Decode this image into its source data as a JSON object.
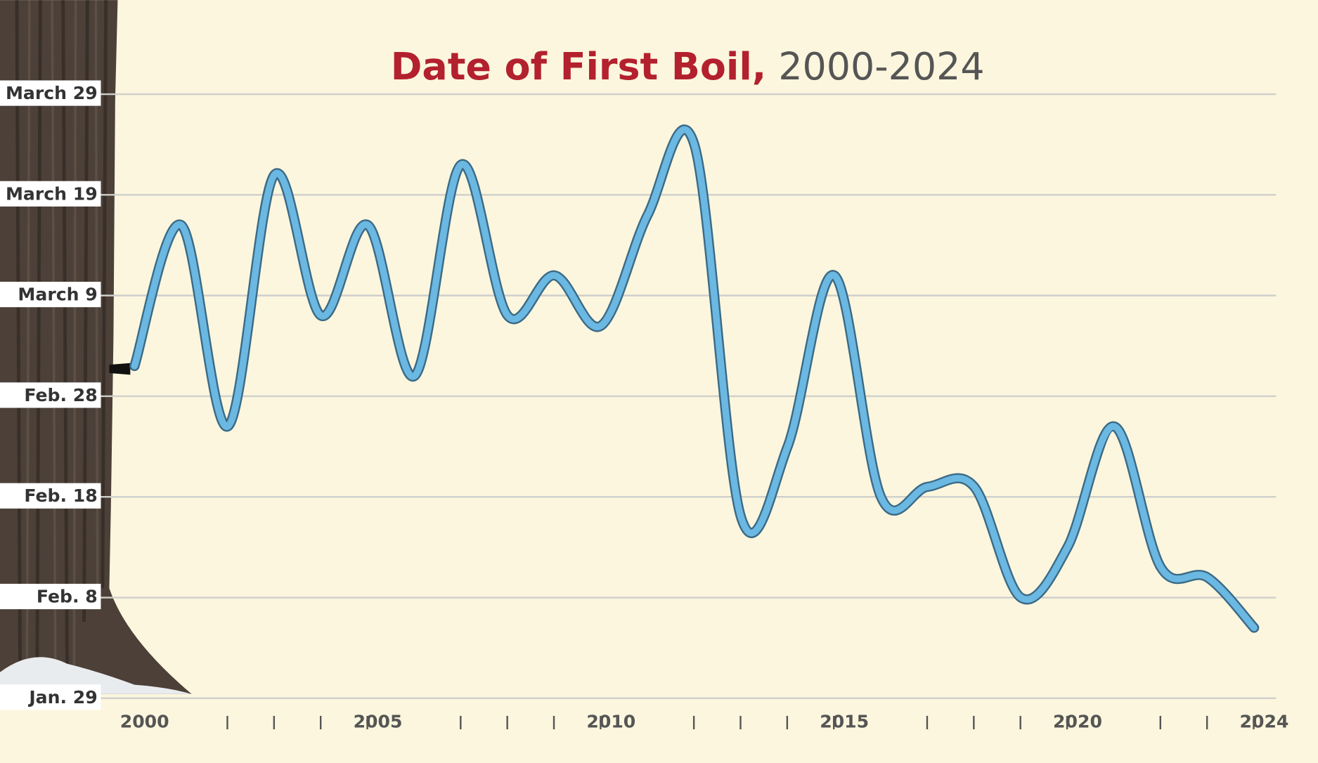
{
  "chart_data": {
    "type": "line",
    "title": "Date of First Boil,",
    "subtitle": "2000-2024",
    "x": [
      2000,
      2001,
      2002,
      2003,
      2004,
      2005,
      2006,
      2007,
      2008,
      2009,
      2010,
      2011,
      2012,
      2013,
      2014,
      2015,
      2016,
      2017,
      2018,
      2019,
      2020,
      2021,
      2022,
      2023,
      2024
    ],
    "series": [
      {
        "color": "#6bb8e2",
        "values": [
          62,
          76,
          56,
          81,
          67,
          76,
          61,
          82,
          67,
          71,
          66,
          77,
          84,
          47,
          54,
          71,
          49,
          50,
          50,
          39,
          44,
          56,
          42,
          41,
          36
        ]
      }
    ],
    "xlim": [
      2000,
      2024
    ],
    "xticks": [
      2000,
      2005,
      2010,
      2015,
      2020,
      2024
    ],
    "xminor_ticks": [
      2001,
      2002,
      2003,
      2004,
      2006,
      2007,
      2008,
      2009,
      2011,
      2012,
      2013,
      2014,
      2016,
      2017,
      2018,
      2019,
      2021,
      2022,
      2023
    ],
    "ylim": [
      29,
      89
    ],
    "yticks": [
      {
        "value": 29,
        "label": "Jan. 29"
      },
      {
        "value": 39,
        "label": "Feb. 8"
      },
      {
        "value": 49,
        "label": "Feb. 18"
      },
      {
        "value": 59,
        "label": "Feb. 28"
      },
      {
        "value": 69,
        "label": "March 9"
      },
      {
        "value": 79,
        "label": "March 19"
      },
      {
        "value": 89,
        "label": "March 29"
      }
    ],
    "grid": true
  }
}
